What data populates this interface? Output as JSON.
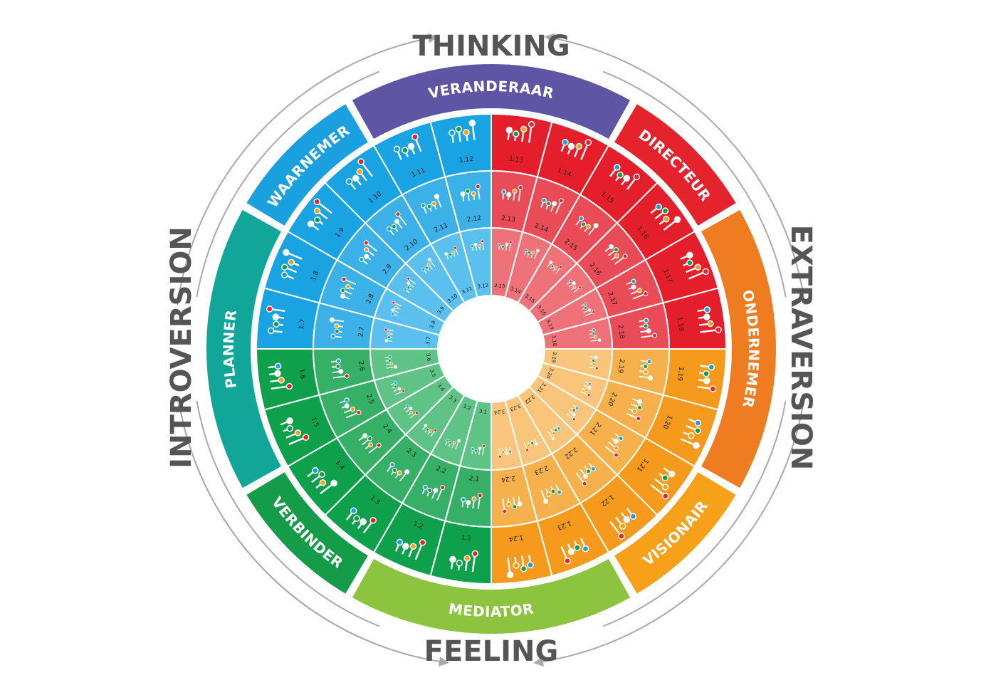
{
  "axes": {
    "top": "THINKING",
    "bottom": "FEELING",
    "left": "INTROVERSION",
    "right": "EXTRAVERSION"
  },
  "roles": [
    {
      "id": "veranderaar",
      "label": "VERANDERAAR",
      "color": "#5E55A4"
    },
    {
      "id": "directeur",
      "label": "DIRECTEUR",
      "color": "#E4232D"
    },
    {
      "id": "ondernemer",
      "label": "ONDERNEMER",
      "color": "#F07C22"
    },
    {
      "id": "visionair",
      "label": "VISIONAIR",
      "color": "#F7A11A"
    },
    {
      "id": "mediator",
      "label": "MEDIATOR",
      "color": "#8CC43F"
    },
    {
      "id": "verbinder",
      "label": "VERBINDER",
      "color": "#149C49"
    },
    {
      "id": "planner",
      "label": "PLANNER",
      "color": "#12A69A"
    },
    {
      "id": "waarnemer",
      "label": "WAARNEMER",
      "color": "#1AA0DE"
    }
  ],
  "quadrant_colors": {
    "blue": [
      "#1AA3E3",
      "#3BB1E8",
      "#5CC0EE"
    ],
    "red": [
      "#E41E2B",
      "#EA4C57",
      "#EF7279"
    ],
    "orange": [
      "#F59A1C",
      "#F7B14C",
      "#F9C57A"
    ],
    "green": [
      "#0FA04B",
      "#36B066",
      "#60C386"
    ]
  },
  "rings": {
    "outer": [
      "1.1",
      "1.2",
      "1.3",
      "1.4",
      "1.5",
      "1.6",
      "1.7",
      "1.8",
      "1.9",
      "1.10",
      "1.11",
      "1.12",
      "1.13",
      "1.14",
      "1.15",
      "1.16",
      "1.17",
      "1.18",
      "1.19",
      "1.20",
      "1.21",
      "1.22",
      "1.23",
      "1.24"
    ],
    "middle": [
      "2.1",
      "2.2",
      "2.3",
      "2.4",
      "2.5",
      "2.6",
      "2.7",
      "2.8",
      "2.9",
      "2.10",
      "2.11",
      "2.12",
      "2.13",
      "2.14",
      "2.15",
      "2.16",
      "2.17",
      "2.18",
      "2.19",
      "2.20",
      "2.21",
      "2.22",
      "2.23",
      "2.24"
    ],
    "inner": [
      "3.1",
      "3.2",
      "3.3",
      "3.4",
      "3.5",
      "3.6",
      "3.7",
      "3.8",
      "3.9",
      "3.10",
      "3.11",
      "3.12",
      "3.13",
      "3.14",
      "3.15",
      "3.16",
      "3.17",
      "3.18",
      "3.19",
      "3.20",
      "3.21",
      "3.22",
      "3.23",
      "3.24"
    ]
  },
  "dot_colors": [
    "#1AA0DE",
    "#149C49",
    "#F7A11A",
    "#E4232D"
  ],
  "arrow_color": "#AAAAAA"
}
